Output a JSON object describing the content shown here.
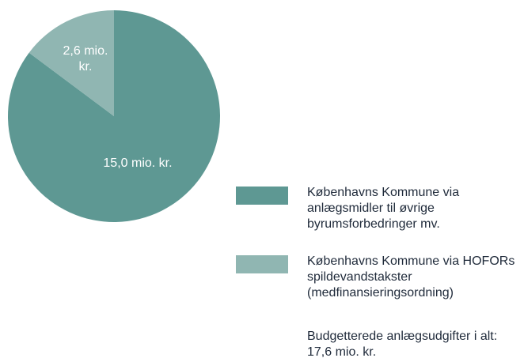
{
  "chart_data": {
    "type": "pie",
    "categories": [
      "Københavns Kommune via anlægsmidler til øvrige byrumsforbedringer mv.",
      "Københavns Kommune via HOFORs spildevandstakster (medfinansieringsordning)"
    ],
    "values": [
      15.0,
      2.6
    ],
    "value_labels": [
      "15,0 mio. kr.",
      "2,6 mio. kr."
    ],
    "colors": [
      "#5e9893",
      "#90b6b2"
    ],
    "annotation": "Budgetterede anlægsudgifter i alt: 17,6 mio. kr."
  }
}
